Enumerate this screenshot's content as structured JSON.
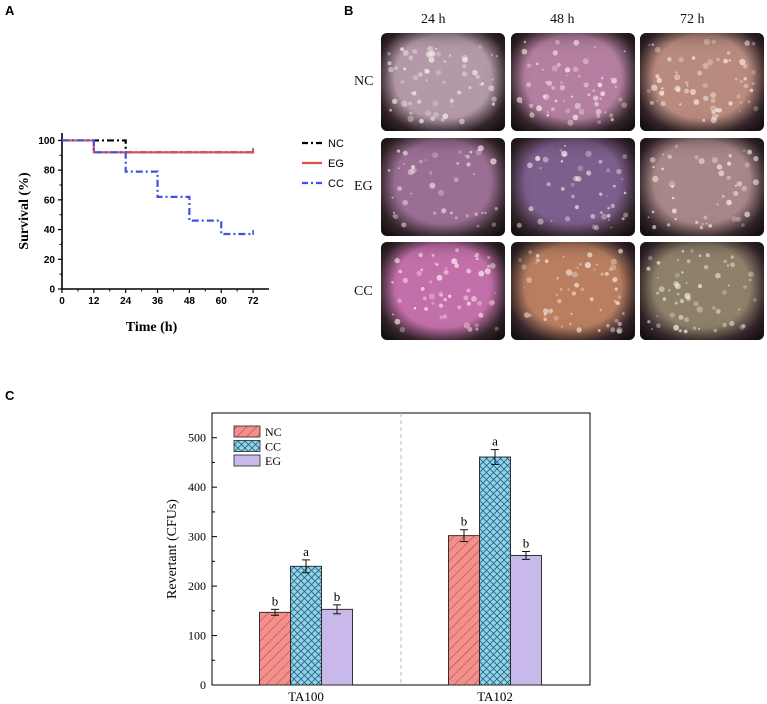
{
  "panels": {
    "a": "A",
    "b": "B",
    "c": "C"
  },
  "chart_data": [
    {
      "type": "line",
      "subtype": "step",
      "xlabel": "Time (h)",
      "ylabel": "Survival (%)",
      "xlim": [
        0,
        78
      ],
      "ylim": [
        0,
        105
      ],
      "xticks": [
        0,
        12,
        24,
        36,
        48,
        60,
        72
      ],
      "yticks": [
        0,
        20,
        40,
        60,
        80,
        100
      ],
      "series": [
        {
          "name": "NC",
          "color": "#000000",
          "style": "dash-dot",
          "x": [
            0,
            24,
            24,
            72
          ],
          "y": [
            100,
            100,
            92,
            92
          ]
        },
        {
          "name": "EG",
          "color": "#d9534f",
          "style": "solid",
          "x": [
            0,
            12,
            12,
            72
          ],
          "y": [
            100,
            100,
            92,
            92
          ]
        },
        {
          "name": "CC",
          "color": "#3f52e0",
          "style": "dash-dot",
          "x": [
            0,
            12,
            12,
            24,
            24,
            36,
            36,
            48,
            48,
            60,
            60,
            72
          ],
          "y": [
            100,
            100,
            92,
            92,
            79,
            79,
            62,
            62,
            46,
            46,
            37,
            37
          ]
        }
      ]
    },
    {
      "type": "bar",
      "xlabel": "",
      "ylabel": "Revertant (CFUs)",
      "ylim": [
        0,
        550
      ],
      "yticks": [
        0,
        100,
        200,
        300,
        400,
        500
      ],
      "categories": [
        "TA100",
        "TA102"
      ],
      "series": [
        {
          "name": "NC",
          "color": "#f4908c",
          "pattern": "diagonal",
          "values": [
            147,
            302
          ],
          "errors": [
            6,
            12
          ],
          "letters": [
            "b",
            "b"
          ]
        },
        {
          "name": "CC",
          "color": "#8fd4ea",
          "pattern": "crosshatch",
          "values": [
            240,
            461
          ],
          "errors": [
            13,
            15
          ],
          "letters": [
            "a",
            "a"
          ]
        },
        {
          "name": "EG",
          "color": "#c9b9ea",
          "pattern": "solid",
          "values": [
            153,
            262
          ],
          "errors": [
            9,
            8
          ],
          "letters": [
            "b",
            "b"
          ]
        }
      ]
    }
  ],
  "micrographs": {
    "columns": [
      "24 h",
      "48 h",
      "72 h"
    ],
    "rows": [
      "NC",
      "EG",
      "CC"
    ],
    "tints": [
      [
        "#b49aa8",
        "#b47fa0",
        "#b98b7e"
      ],
      [
        "#9b6f94",
        "#7d5e8c",
        "#a78787"
      ],
      [
        "#c370aa",
        "#b97e60",
        "#8e816a"
      ]
    ]
  }
}
